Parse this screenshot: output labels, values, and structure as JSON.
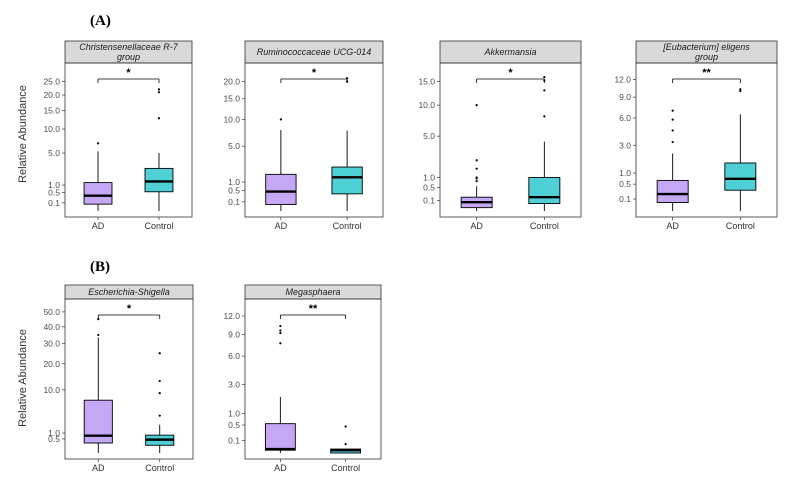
{
  "figure": {
    "panel_a_label": "(A)",
    "panel_b_label": "(B)",
    "ylabel_a": "Relative Abundance",
    "ylabel_b": "Relative Abundance"
  },
  "colors": {
    "AD": "#c4a8f5",
    "Control": "#4fcfd6",
    "strip_bg": "#d9d9d9",
    "panel_border": "#333333"
  },
  "chart_data": [
    {
      "type": "box",
      "panel": "A",
      "title": "Christensenellaceae R-7 group",
      "title_lines": [
        "Christensenellaceae R-7",
        "group"
      ],
      "categories": [
        "AD",
        "Control"
      ],
      "yscale": "sqrt",
      "ylim": [
        0,
        30
      ],
      "yticks": [
        0.1,
        0.5,
        1.0,
        5.0,
        10.0,
        15.0,
        20.0,
        25.0
      ],
      "ytick_labels": [
        "0.1",
        "0.5",
        "1.0",
        "5.0",
        "10.0",
        "15.0",
        "20.0",
        "25.0"
      ],
      "boxes": [
        {
          "group": "AD",
          "min": 0.0,
          "q1": 0.07,
          "median": 0.35,
          "q3": 1.2,
          "max": 5.3,
          "outliers": [
            6.8
          ]
        },
        {
          "group": "Control",
          "min": 0.0,
          "q1": 0.55,
          "median": 1.3,
          "q3": 2.7,
          "max": 5.0,
          "outliers": [
            12.8,
            21.0,
            22.0
          ]
        }
      ],
      "significance": "*"
    },
    {
      "type": "box",
      "panel": "A",
      "title": "Ruminococcaceae UCG-014",
      "title_lines": [
        "Ruminococcaceae UCG-014"
      ],
      "categories": [
        "AD",
        "Control"
      ],
      "yscale": "sqrt",
      "ylim": [
        0,
        24
      ],
      "yticks": [
        0.1,
        0.5,
        1.0,
        5.0,
        10.0,
        15.0,
        20.0
      ],
      "ytick_labels": [
        "0.1",
        "0.5",
        "1.0",
        "5.0",
        "10.0",
        "15.0",
        "20.0"
      ],
      "boxes": [
        {
          "group": "AD",
          "min": 0.0,
          "q1": 0.05,
          "median": 0.45,
          "q3": 1.6,
          "max": 7.8,
          "outliers": [
            10.0
          ]
        },
        {
          "group": "Control",
          "min": 0.0,
          "q1": 0.35,
          "median": 1.35,
          "q3": 2.3,
          "max": 7.7,
          "outliers": [
            20.0,
            21.0
          ]
        }
      ],
      "significance": "*"
    },
    {
      "type": "box",
      "panel": "A",
      "title": "Akkermansia",
      "title_lines": [
        "Akkermansia"
      ],
      "categories": [
        "AD",
        "Control"
      ],
      "yscale": "sqrt",
      "ylim": [
        0,
        18
      ],
      "yticks": [
        0.1,
        0.5,
        1.0,
        5.0,
        10.0,
        15.0
      ],
      "ytick_labels": [
        "0.1",
        "0.5",
        "1.0",
        "5.0",
        "10.0",
        "15.0"
      ],
      "boxes": [
        {
          "group": "AD",
          "min": 0.0,
          "q1": 0.01,
          "median": 0.07,
          "q3": 0.17,
          "max": 0.55,
          "outliers": [
            0.8,
            0.95,
            1.0,
            1.6,
            2.3,
            10.0
          ]
        },
        {
          "group": "Control",
          "min": 0.0,
          "q1": 0.05,
          "median": 0.17,
          "q3": 1.0,
          "max": 4.3,
          "outliers": [
            8.0,
            13.0,
            15.2,
            16.0
          ]
        }
      ],
      "significance": "*"
    },
    {
      "type": "box",
      "panel": "A",
      "title": "[Eubacterium] eligens group",
      "title_lines": [
        "[Eubacterium] eligens",
        "group"
      ],
      "categories": [
        "AD",
        "Control"
      ],
      "yscale": "sqrt",
      "ylim": [
        0,
        14
      ],
      "yticks": [
        0.1,
        0.5,
        1.0,
        3.0,
        6.0,
        9.0,
        12.0
      ],
      "ytick_labels": [
        "0.1",
        "0.5",
        "1.0",
        "3.0",
        "6.0",
        "9.0",
        "12.0"
      ],
      "boxes": [
        {
          "group": "AD",
          "min": 0.0,
          "q1": 0.05,
          "median": 0.2,
          "q3": 0.65,
          "max": 2.3,
          "outliers": [
            3.3,
            4.5,
            5.8,
            7.0
          ]
        },
        {
          "group": "Control",
          "min": 0.0,
          "q1": 0.3,
          "median": 0.72,
          "q3": 1.6,
          "max": 6.5,
          "outliers": [
            10.0,
            10.3
          ]
        }
      ],
      "significance": "**"
    },
    {
      "type": "box",
      "panel": "B",
      "title": "Escherichia-Shigella",
      "title_lines": [
        "Escherichia-Shigella"
      ],
      "categories": [
        "AD",
        "Control"
      ],
      "yscale": "sqrt",
      "ylim": [
        0,
        55
      ],
      "yticks": [
        0.5,
        1.0,
        10.0,
        20.0,
        30.0,
        40.0,
        50.0
      ],
      "ytick_labels": [
        "0.5",
        "1.0",
        "10.0",
        "20.0",
        "30.0",
        "40.0",
        "50.0"
      ],
      "boxes": [
        {
          "group": "AD",
          "min": 0.0,
          "q1": 0.25,
          "median": 0.75,
          "q3": 7.0,
          "max": 33.5,
          "outliers": [
            35.0,
            45.0
          ]
        },
        {
          "group": "Control",
          "min": 0.0,
          "q1": 0.15,
          "median": 0.45,
          "q3": 0.8,
          "max": 2.0,
          "outliers": [
            3.5,
            9.0,
            13.0,
            25.0
          ]
        }
      ],
      "significance": "*"
    },
    {
      "type": "box",
      "panel": "B",
      "title": "Megasphaera",
      "title_lines": [
        "Megasphaera"
      ],
      "categories": [
        "AD",
        "Control"
      ],
      "yscale": "sqrt",
      "ylim": [
        0,
        14
      ],
      "yticks": [
        0.1,
        0.5,
        1.0,
        3.0,
        6.0,
        9.0,
        12.0
      ],
      "ytick_labels": [
        "0.1",
        "0.5",
        "1.0",
        "3.0",
        "6.0",
        "9.0",
        "12.0"
      ],
      "boxes": [
        {
          "group": "AD",
          "min": 0.0,
          "q1": 0.005,
          "median": 0.01,
          "q3": 0.55,
          "max": 2.0,
          "outliers": [
            7.7,
            9.2,
            9.6,
            10.3
          ]
        },
        {
          "group": "Control",
          "min": 0.0,
          "q1": 0.0,
          "median": 0.005,
          "q3": 0.01,
          "max": 0.01,
          "outliers": [
            0.05,
            0.45
          ]
        }
      ],
      "significance": "**"
    }
  ]
}
